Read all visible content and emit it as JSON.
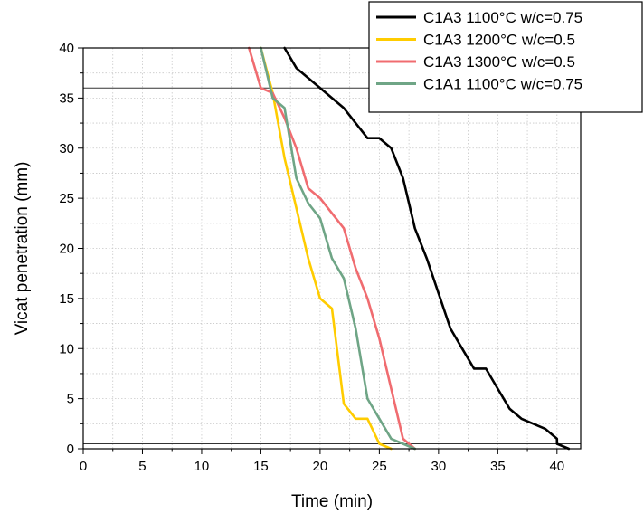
{
  "chart_data": {
    "type": "line",
    "xlabel": "Time (min)",
    "ylabel": "Vicat penetration (mm)",
    "xlim": [
      0,
      42
    ],
    "ylim": [
      0,
      40
    ],
    "x_ticks": [
      0,
      5,
      10,
      15,
      20,
      25,
      30,
      35,
      40
    ],
    "y_ticks": [
      0,
      5,
      10,
      15,
      20,
      25,
      30,
      35,
      40
    ],
    "x_tick_labels": [
      "0",
      "5",
      "10",
      "15",
      "20",
      "25",
      "30",
      "35",
      "40"
    ],
    "y_tick_labels": [
      "0",
      "5",
      "10",
      "15",
      "20",
      "25",
      "30",
      "35",
      "40"
    ],
    "grid": true,
    "grid_style": "dotted",
    "reference_lines_y": [
      36,
      0.5
    ],
    "legend_position": "top-right",
    "series": [
      {
        "name": "C1A3 1100°C w/c=0.75",
        "color": "#000000",
        "x": [
          17,
          18,
          20,
          22,
          24,
          25,
          26,
          27,
          28,
          29,
          30,
          31,
          32,
          33,
          34,
          35,
          36,
          37,
          39,
          40,
          40,
          41
        ],
        "y": [
          40,
          38,
          36,
          34,
          31,
          31,
          30,
          27,
          22,
          19,
          15.5,
          12,
          10,
          8,
          8,
          6,
          4,
          3,
          2,
          1,
          0.5,
          0
        ]
      },
      {
        "name": "C1A3 1200°C w/c=0.5",
        "color": "#ffcc00",
        "x": [
          15,
          16,
          17,
          18,
          19,
          20,
          21,
          22,
          23,
          24,
          25,
          26
        ],
        "y": [
          40,
          35.5,
          29,
          24,
          19,
          15,
          14,
          4.5,
          3,
          3,
          0.5,
          0
        ]
      },
      {
        "name": "C1A3 1300°C w/c=0.5",
        "color": "#f06c70",
        "x": [
          14,
          15,
          16,
          17,
          18,
          19,
          20,
          21,
          22,
          23,
          24,
          25,
          26,
          27,
          28
        ],
        "y": [
          40,
          36,
          35.5,
          33,
          30,
          26,
          25,
          23.5,
          22,
          18,
          15,
          11,
          6,
          1,
          0
        ]
      },
      {
        "name": "C1A1 1100°C w/c=0.75",
        "color": "#6fa586",
        "x": [
          15,
          16,
          17,
          18,
          19,
          20,
          21,
          22,
          23,
          24,
          25,
          26,
          27,
          28
        ],
        "y": [
          40,
          35,
          34,
          27,
          24.5,
          23,
          19,
          17,
          12,
          5,
          3,
          1,
          0.5,
          0
        ]
      }
    ]
  }
}
